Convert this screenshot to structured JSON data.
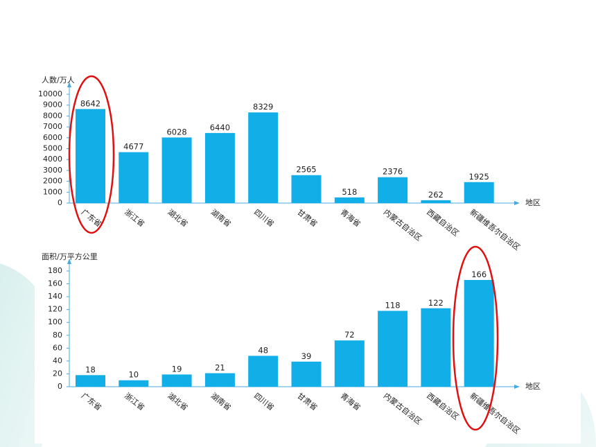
{
  "chart_data": [
    {
      "type": "bar",
      "y_label": "人数/万人",
      "x_label": "地区",
      "categories": [
        "广东省",
        "浙江省",
        "湖北省",
        "湖南省",
        "四川省",
        "甘肃省",
        "青海省",
        "内蒙古自治区",
        "西藏自治区",
        "新疆维吾尔自治区"
      ],
      "values": [
        8642,
        4677,
        6028,
        6440,
        8329,
        2565,
        518,
        2376,
        262,
        1925
      ],
      "color": "#12aee8",
      "ylim": [
        0,
        10000
      ],
      "yticks": [
        0,
        1000,
        2000,
        3000,
        4000,
        5000,
        6000,
        7000,
        8000,
        9000,
        10000
      ]
    },
    {
      "type": "bar",
      "y_label": "面积/万平方公里",
      "x_label": "地区",
      "categories": [
        "广东省",
        "浙江省",
        "湖北省",
        "湖南省",
        "四川省",
        "甘肃省",
        "青海省",
        "内蒙古自治区",
        "西藏自治区",
        "新疆维吾尔自治区"
      ],
      "values": [
        18,
        10,
        19,
        21,
        48,
        39,
        72,
        118,
        122,
        166
      ],
      "color": "#12aee8",
      "ylim": [
        0,
        180
      ],
      "yticks": [
        0,
        20,
        40,
        60,
        80,
        100,
        120,
        140,
        160,
        180
      ]
    }
  ]
}
